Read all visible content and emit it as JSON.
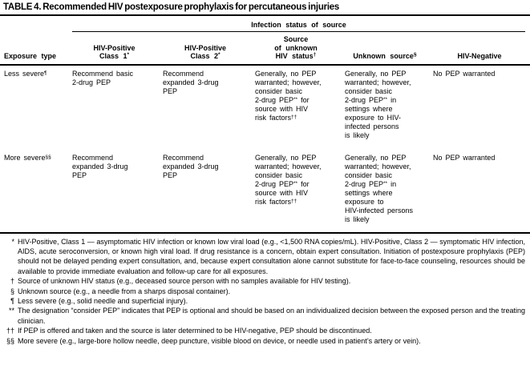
{
  "title": "TABLE 4. Recommended HIV postexposure prophylaxis for percutaneous injuries",
  "colors": {
    "text": "#000000",
    "background": "#ffffff",
    "rule": "#000000"
  },
  "table": {
    "group_header": "Infection status of source",
    "columns": [
      {
        "id": "exposure-type",
        "lines": [
          [
            {
              "t": "Exposure type"
            }
          ]
        ]
      },
      {
        "id": "hiv-positive-class-1",
        "lines": [
          [
            {
              "t": "HIV-Positive"
            }
          ],
          [
            {
              "t": "Class 1"
            },
            {
              "s": "*"
            }
          ]
        ]
      },
      {
        "id": "hiv-positive-class-2",
        "lines": [
          [
            {
              "t": "HIV-Positive"
            }
          ],
          [
            {
              "t": "Class 2"
            },
            {
              "s": "*"
            }
          ]
        ]
      },
      {
        "id": "source-of-unknown-hiv-status",
        "lines": [
          [
            {
              "t": "Source"
            }
          ],
          [
            {
              "t": "of unknown"
            }
          ],
          [
            {
              "t": "HIV status"
            },
            {
              "s": "†"
            }
          ]
        ]
      },
      {
        "id": "unknown-source",
        "lines": [
          [
            {
              "t": "Unknown source"
            },
            {
              "s": "§"
            }
          ]
        ]
      },
      {
        "id": "hiv-negative",
        "lines": [
          [
            {
              "t": "HIV-Negative"
            }
          ]
        ]
      }
    ],
    "rows": [
      {
        "id": "less-severe",
        "cells": [
          [
            [
              {
                "t": "Less severe"
              },
              {
                "s": "¶"
              }
            ]
          ],
          [
            [
              {
                "t": "Recommend basic"
              }
            ],
            [
              {
                "t": "2-drug PEP"
              }
            ]
          ],
          [
            [
              {
                "t": "Recommend"
              }
            ],
            [
              {
                "t": "expanded 3-drug"
              }
            ],
            [
              {
                "t": "PEP"
              }
            ]
          ],
          [
            [
              {
                "t": "Generally, no PEP"
              }
            ],
            [
              {
                "t": "warranted; however,"
              }
            ],
            [
              {
                "t": "consider basic"
              }
            ],
            [
              {
                "t": "2-drug PEP"
              },
              {
                "s": "**"
              },
              {
                "t": " for"
              }
            ],
            [
              {
                "t": "source with HIV"
              }
            ],
            [
              {
                "t": "risk factors"
              },
              {
                "s": "††"
              }
            ]
          ],
          [
            [
              {
                "t": "Generally, no PEP"
              }
            ],
            [
              {
                "t": "warranted; however,"
              }
            ],
            [
              {
                "t": "consider basic"
              }
            ],
            [
              {
                "t": "2-drug PEP"
              },
              {
                "s": "**"
              },
              {
                "t": " in"
              }
            ],
            [
              {
                "t": "settings where"
              }
            ],
            [
              {
                "t": "exposure to HIV-"
              }
            ],
            [
              {
                "t": "infected persons"
              }
            ],
            [
              {
                "t": "is likely"
              }
            ]
          ],
          [
            [
              {
                "t": "No PEP warranted"
              }
            ]
          ]
        ]
      },
      {
        "id": "more-severe",
        "cells": [
          [
            [
              {
                "t": "More severe"
              },
              {
                "s": "§§"
              }
            ]
          ],
          [
            [
              {
                "t": "Recommend"
              }
            ],
            [
              {
                "t": "expanded 3-drug"
              }
            ],
            [
              {
                "t": "PEP"
              }
            ]
          ],
          [
            [
              {
                "t": "Recommend"
              }
            ],
            [
              {
                "t": "expanded 3-drug"
              }
            ],
            [
              {
                "t": "PEP"
              }
            ]
          ],
          [
            [
              {
                "t": "Generally, no PEP"
              }
            ],
            [
              {
                "t": "warranted; however,"
              }
            ],
            [
              {
                "t": "consider basic"
              }
            ],
            [
              {
                "t": "2-drug PEP"
              },
              {
                "s": "**"
              },
              {
                "t": " for"
              }
            ],
            [
              {
                "t": "source with HIV"
              }
            ],
            [
              {
                "t": "risk factors"
              },
              {
                "s": "††"
              }
            ]
          ],
          [
            [
              {
                "t": "Generally, no PEP"
              }
            ],
            [
              {
                "t": "warranted; however,"
              }
            ],
            [
              {
                "t": "consider basic"
              }
            ],
            [
              {
                "t": "2-drug PEP"
              },
              {
                "s": "**"
              },
              {
                "t": " in"
              }
            ],
            [
              {
                "t": "settings where"
              }
            ],
            [
              {
                "t": "exposure to"
              }
            ],
            [
              {
                "t": "HIV-infected persons"
              }
            ],
            [
              {
                "t": "is likely"
              }
            ]
          ],
          [
            [
              {
                "t": "No PEP warranted"
              }
            ]
          ]
        ]
      }
    ]
  },
  "footnotes": [
    {
      "marker": "*",
      "text": "HIV-Positive, Class 1 — asymptomatic HIV infection or known low viral load (e.g., <1,500 RNA copies/mL). HIV-Positive, Class 2 — symptomatic HIV infection, AIDS, acute seroconversion, or known high viral load. If drug resistance is a concern, obtain expert consultation. Initiation of postexposure prophylaxis (PEP) should not be delayed pending expert consultation, and, because expert consultation alone cannot substitute for face-to-face counseling, resources should be available to provide immediate evaluation and follow-up care for all exposures."
    },
    {
      "marker": "†",
      "text": "Source of unknown HIV status (e.g., deceased source person with no samples available for HIV testing)."
    },
    {
      "marker": "§",
      "text": "Unknown source (e.g., a needle from a sharps disposal container)."
    },
    {
      "marker": "¶",
      "text": "Less severe (e.g., solid needle and superficial injury)."
    },
    {
      "marker": "**",
      "text": "The designation “consider PEP” indicates that PEP is optional and should be based on an individualized decision between the exposed person and the treating clinician."
    },
    {
      "marker": "††",
      "text": "If PEP is offered and taken and the source is later determined to be HIV-negative, PEP should be discontinued."
    },
    {
      "marker": "§§",
      "text": "More severe (e.g., large-bore hollow needle, deep puncture, visible blood on device, or needle used in patient’s artery or vein)."
    }
  ]
}
